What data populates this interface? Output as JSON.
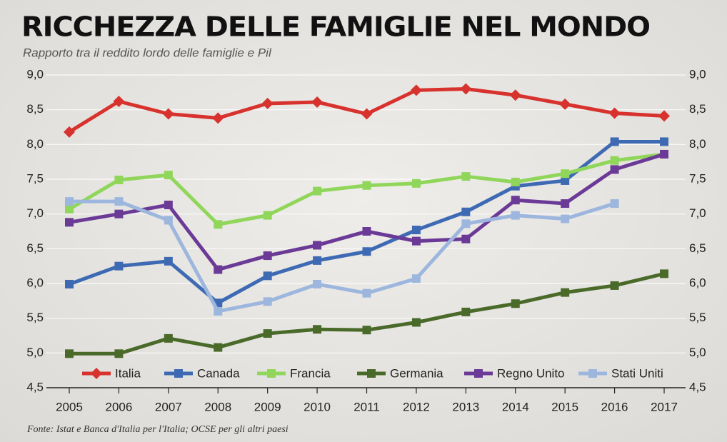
{
  "chart_data": {
    "type": "line",
    "title": "RICCHEZZA DELLE FAMIGLIE NEL MONDO",
    "subtitle": "Rapporto tra il reddito lordo delle famiglie e Pil",
    "source": "Fonte: Istat e Banca d'Italia per l'Italia; OCSE per gli altri paesi",
    "categories": [
      "2005",
      "2006",
      "2007",
      "2008",
      "2009",
      "2010",
      "2011",
      "2012",
      "2013",
      "2014",
      "2015",
      "2016",
      "2017"
    ],
    "ylim": [
      4.5,
      9.0
    ],
    "yticks": [
      {
        "value": 4.5,
        "label": "4,5"
      },
      {
        "value": 5.0,
        "label": "5,0"
      },
      {
        "value": 5.5,
        "label": "5,5"
      },
      {
        "value": 6.0,
        "label": "6,0"
      },
      {
        "value": 6.5,
        "label": "6,5"
      },
      {
        "value": 7.0,
        "label": "7,0"
      },
      {
        "value": 7.5,
        "label": "7,5"
      },
      {
        "value": 8.0,
        "label": "8,0"
      },
      {
        "value": 8.5,
        "label": "8,5"
      },
      {
        "value": 9.0,
        "label": "9,0"
      }
    ],
    "grid": true,
    "legend": "bottom",
    "series": [
      {
        "name": "Italia",
        "color": "#d7322d",
        "marker": "diamond",
        "values": [
          8.18,
          8.62,
          8.44,
          8.38,
          8.59,
          8.61,
          8.44,
          8.78,
          8.8,
          8.71,
          8.58,
          8.45,
          8.41
        ]
      },
      {
        "name": "Canada",
        "color": "#3d6ab3",
        "marker": "square",
        "values": [
          5.99,
          6.25,
          6.32,
          5.72,
          6.11,
          6.33,
          6.46,
          6.77,
          7.03,
          7.4,
          7.48,
          8.04,
          8.04
        ]
      },
      {
        "name": "Francia",
        "color": "#8fd65a",
        "marker": "square",
        "values": [
          7.07,
          7.49,
          7.56,
          6.85,
          6.98,
          7.33,
          7.41,
          7.44,
          7.54,
          7.46,
          7.58,
          7.77,
          7.86
        ]
      },
      {
        "name": "Germania",
        "color": "#4a6a2a",
        "marker": "square",
        "values": [
          4.99,
          4.99,
          5.21,
          5.08,
          5.28,
          5.34,
          5.33,
          5.44,
          5.59,
          5.71,
          5.87,
          5.97,
          6.14
        ]
      },
      {
        "name": "Regno Unito",
        "color": "#6a3a96",
        "marker": "square",
        "values": [
          6.88,
          7.0,
          7.13,
          6.2,
          6.4,
          6.55,
          6.75,
          6.61,
          6.64,
          7.2,
          7.15,
          7.64,
          7.86
        ]
      },
      {
        "name": "Stati Uniti",
        "color": "#9cb6dd",
        "marker": "square",
        "values": [
          7.18,
          7.18,
          6.91,
          5.6,
          5.74,
          5.99,
          5.86,
          6.07,
          6.86,
          6.98,
          6.93,
          7.15,
          null
        ]
      }
    ]
  }
}
